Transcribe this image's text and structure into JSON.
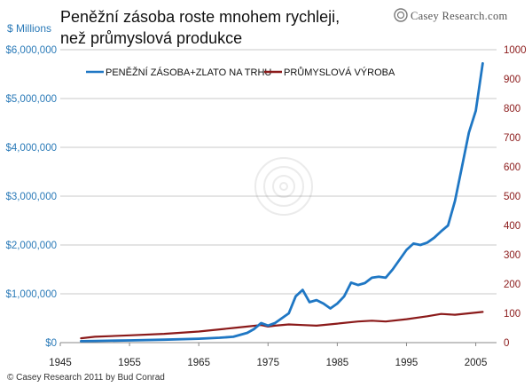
{
  "title_lines": [
    "Peněžní zásoba roste mnohem rychleji,",
    "než průmyslová produkce"
  ],
  "brand": "Casey Research.com",
  "unit_label": "$ Millions",
  "credit": "© Casey Research 2011 by Bud Conrad",
  "colors": {
    "money": "#1f77c4",
    "industry": "#8b1a1a",
    "left_axis": "#2a7ab8",
    "right_axis": "#8b1a1a",
    "grid": "#c8c8c8"
  },
  "chart_data": {
    "type": "line",
    "x_ticks": [
      1945,
      1955,
      1965,
      1975,
      1985,
      1995,
      2005
    ],
    "xlim": [
      1945,
      2008
    ],
    "ylim_left": [
      0,
      6000000
    ],
    "ylim_right": [
      0,
      1000
    ],
    "left_ticks": [
      "$0",
      "$1,000,000",
      "$2,000,000",
      "$3,000,000",
      "$4,000,000",
      "$5,000,000",
      "$6,000,000"
    ],
    "right_ticks": [
      "0",
      "100",
      "200",
      "300",
      "400",
      "500",
      "600",
      "700",
      "800",
      "900",
      "1000"
    ],
    "grid": "horizontal",
    "legend_position": "top-left",
    "series": [
      {
        "name": "PENĚŽNÍ ZÁSOBA+ZLATO NA TRHU",
        "axis": "left",
        "x": [
          1948,
          1950,
          1955,
          1960,
          1965,
          1968,
          1970,
          1972,
          1973,
          1974,
          1975,
          1976,
          1977,
          1978,
          1979,
          1980,
          1981,
          1982,
          1983,
          1984,
          1985,
          1986,
          1987,
          1988,
          1989,
          1990,
          1991,
          1992,
          1993,
          1994,
          1995,
          1996,
          1997,
          1998,
          1999,
          2000,
          2001,
          2002,
          2003,
          2004,
          2005,
          2006
        ],
        "values": [
          30000,
          35000,
          45000,
          60000,
          80000,
          100000,
          120000,
          200000,
          280000,
          400000,
          350000,
          400000,
          500000,
          600000,
          950000,
          1080000,
          830000,
          870000,
          800000,
          700000,
          800000,
          950000,
          1230000,
          1180000,
          1220000,
          1330000,
          1350000,
          1330000,
          1500000,
          1700000,
          1900000,
          2030000,
          2000000,
          2050000,
          2150000,
          2280000,
          2400000,
          2900000,
          3600000,
          4300000,
          4750000,
          5720000
        ]
      },
      {
        "name": "PRŮMYSLOVÁ VÝROBA",
        "axis": "right",
        "x": [
          1948,
          1950,
          1955,
          1960,
          1965,
          1970,
          1972,
          1974,
          1975,
          1976,
          1978,
          1980,
          1982,
          1985,
          1988,
          1990,
          1992,
          1995,
          1998,
          2000,
          2002,
          2004,
          2006
        ],
        "values": [
          15,
          20,
          25,
          30,
          38,
          50,
          55,
          60,
          55,
          58,
          62,
          60,
          58,
          65,
          72,
          75,
          72,
          80,
          90,
          98,
          95,
          100,
          105
        ]
      }
    ]
  }
}
